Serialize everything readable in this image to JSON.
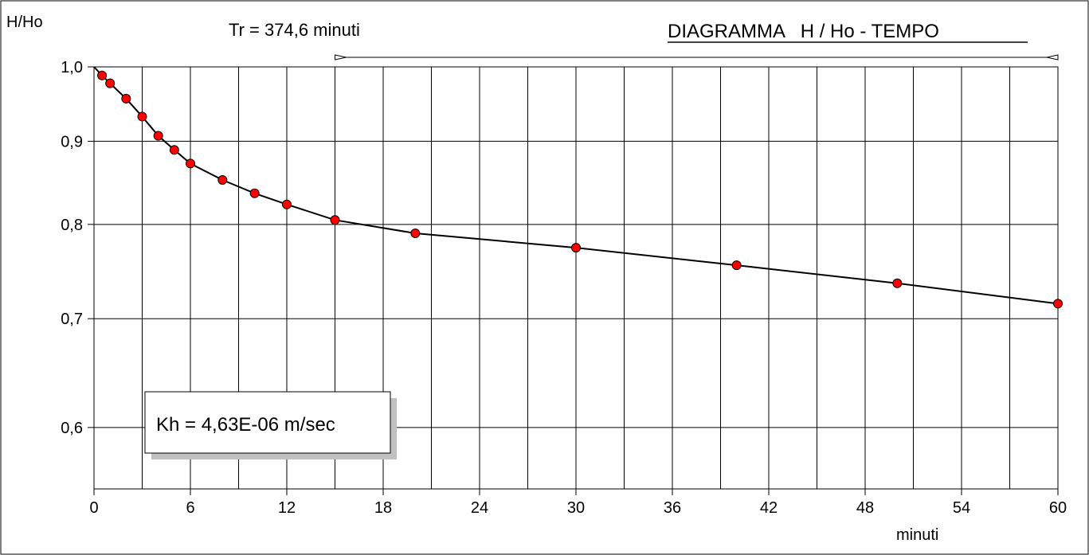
{
  "chart_data": {
    "type": "scatter",
    "title": "DIAGRAMMA   H / Ho - TEMPO",
    "xlabel": "minuti",
    "ylabel": "H/Ho",
    "y_scale": "log",
    "xlim": [
      0,
      60
    ],
    "ylim": [
      0.55,
      1.0
    ],
    "x_ticks": [
      0,
      6,
      12,
      18,
      24,
      30,
      36,
      42,
      48,
      54,
      60
    ],
    "x_tick_labels": [
      "0",
      "6",
      "12",
      "18",
      "24",
      "30",
      "36",
      "42",
      "48",
      "54",
      "60"
    ],
    "y_ticks": [
      0.6,
      0.7,
      0.8,
      0.9,
      1.0
    ],
    "y_tick_labels": [
      "0,6",
      "0,7",
      "0,8",
      "0,9",
      "1,0"
    ],
    "x_minor_step": 3,
    "grid": true,
    "annotations": {
      "tr_label": "Tr = 374,6 minuti",
      "kh_label": "Kh = 4,63E-06 m/sec",
      "tr_range": [
        15,
        60
      ]
    },
    "series": [
      {
        "color": "#ff0000",
        "line_color": "#000000",
        "points": [
          {
            "x": 0,
            "y": 1.0
          },
          {
            "x": 0.5,
            "y": 0.988
          },
          {
            "x": 1,
            "y": 0.977
          },
          {
            "x": 2,
            "y": 0.956
          },
          {
            "x": 3,
            "y": 0.932
          },
          {
            "x": 4,
            "y": 0.907
          },
          {
            "x": 5,
            "y": 0.889
          },
          {
            "x": 6,
            "y": 0.872
          },
          {
            "x": 8,
            "y": 0.852
          },
          {
            "x": 10,
            "y": 0.836
          },
          {
            "x": 12,
            "y": 0.823
          },
          {
            "x": 15,
            "y": 0.805
          },
          {
            "x": 20,
            "y": 0.79
          },
          {
            "x": 30,
            "y": 0.774
          },
          {
            "x": 40,
            "y": 0.755
          },
          {
            "x": 50,
            "y": 0.736
          },
          {
            "x": 60,
            "y": 0.715
          }
        ]
      }
    ]
  }
}
